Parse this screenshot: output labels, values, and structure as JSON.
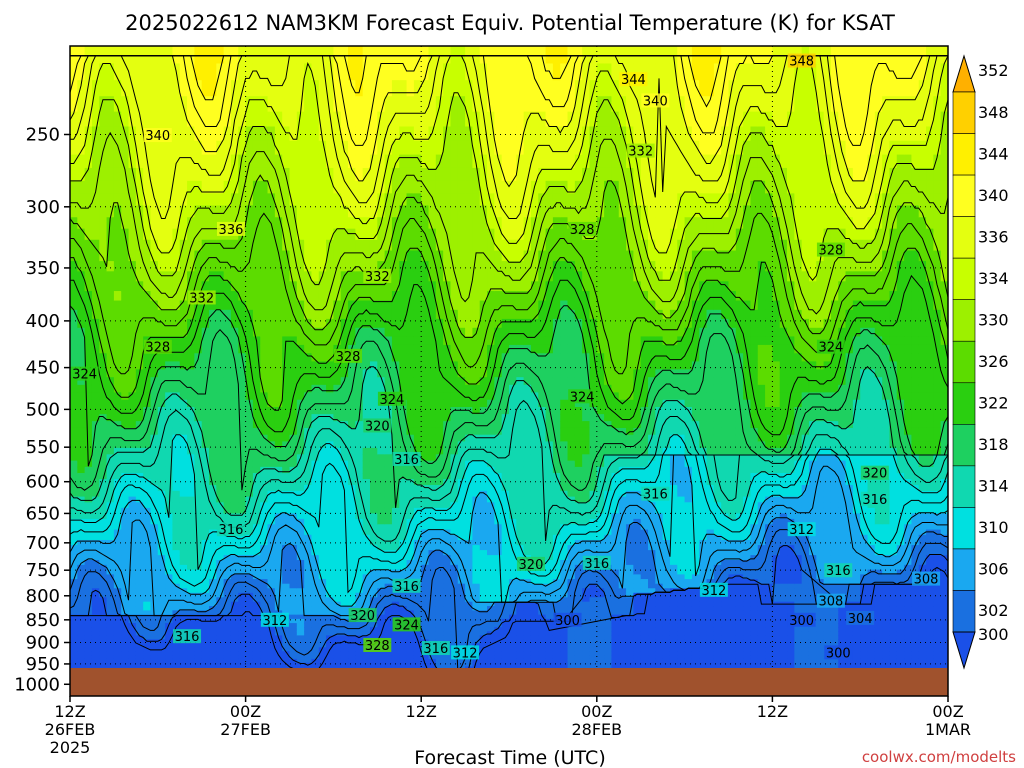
{
  "title": "2025022612 NAM3KM Forecast Equiv. Potential Temperature (K) for KSAT",
  "credit": "coolwx.com/modelts",
  "chart_data": {
    "type": "heatmap",
    "title": "2025022612 NAM3KM Forecast Equiv. Potential Temperature (K) for KSAT",
    "xlabel": "Forecast Time (UTC)",
    "ylabel": "",
    "x_range_hours": [
      0,
      60
    ],
    "y_range_hpa": [
      200,
      1030
    ],
    "y_scale": "log-pressure (inverted)",
    "x_ticks": [
      {
        "hour": 0,
        "line1": "12Z",
        "line2": "26FEB",
        "line3": "2025"
      },
      {
        "hour": 12,
        "line1": "00Z",
        "line2": "27FEB",
        "line3": ""
      },
      {
        "hour": 24,
        "line1": "12Z",
        "line2": "",
        "line3": ""
      },
      {
        "hour": 36,
        "line1": "00Z",
        "line2": "28FEB",
        "line3": ""
      },
      {
        "hour": 48,
        "line1": "12Z",
        "line2": "",
        "line3": ""
      },
      {
        "hour": 60,
        "line1": "00Z",
        "line2": "1MAR",
        "line3": ""
      }
    ],
    "y_ticks": [
      250,
      300,
      350,
      400,
      450,
      500,
      550,
      600,
      650,
      700,
      750,
      800,
      850,
      900,
      950,
      1000
    ],
    "grid": true,
    "colorbar": {
      "values": [
        352,
        348,
        344,
        340,
        336,
        334,
        330,
        326,
        322,
        318,
        314,
        310,
        306,
        302,
        300
      ],
      "colors": [
        "#ffb000",
        "#ffd000",
        "#fff000",
        "#ffff20",
        "#e4ff10",
        "#c8ff00",
        "#9df000",
        "#5cdc00",
        "#2acf10",
        "#1ed060",
        "#10d8b0",
        "#00e0e0",
        "#1aa8f0",
        "#1a70e0",
        "#1a50e8"
      ]
    },
    "surface_color": "#a0522d",
    "contour_labels": [
      {
        "value": "348",
        "hour": 50,
        "p": 208
      },
      {
        "value": "344",
        "hour": 38.5,
        "p": 218
      },
      {
        "value": "340",
        "hour": 40,
        "p": 230
      },
      {
        "value": "340",
        "hour": 6,
        "p": 251
      },
      {
        "value": "332",
        "hour": 39,
        "p": 261
      },
      {
        "value": "336",
        "hour": 11,
        "p": 318
      },
      {
        "value": "328",
        "hour": 35,
        "p": 318
      },
      {
        "value": "328",
        "hour": 52,
        "p": 335
      },
      {
        "value": "332",
        "hour": 21,
        "p": 358
      },
      {
        "value": "332",
        "hour": 9,
        "p": 378
      },
      {
        "value": "328",
        "hour": 6,
        "p": 428
      },
      {
        "value": "328",
        "hour": 19,
        "p": 438
      },
      {
        "value": "324",
        "hour": 52,
        "p": 428
      },
      {
        "value": "324",
        "hour": 1,
        "p": 458
      },
      {
        "value": "324",
        "hour": 22,
        "p": 488
      },
      {
        "value": "324",
        "hour": 35,
        "p": 485
      },
      {
        "value": "320",
        "hour": 21,
        "p": 522
      },
      {
        "value": "316",
        "hour": 23,
        "p": 568
      },
      {
        "value": "320",
        "hour": 55,
        "p": 588
      },
      {
        "value": "316",
        "hour": 40,
        "p": 620
      },
      {
        "value": "316",
        "hour": 55,
        "p": 628
      },
      {
        "value": "316",
        "hour": 11,
        "p": 678
      },
      {
        "value": "312",
        "hour": 50,
        "p": 678
      },
      {
        "value": "320",
        "hour": 31.5,
        "p": 740
      },
      {
        "value": "316",
        "hour": 36,
        "p": 738
      },
      {
        "value": "316",
        "hour": 52.5,
        "p": 752
      },
      {
        "value": "308",
        "hour": 58.5,
        "p": 768
      },
      {
        "value": "316",
        "hour": 23,
        "p": 782
      },
      {
        "value": "312",
        "hour": 44,
        "p": 790
      },
      {
        "value": "308",
        "hour": 52,
        "p": 812
      },
      {
        "value": "312",
        "hour": 14,
        "p": 852
      },
      {
        "value": "320",
        "hour": 20,
        "p": 842
      },
      {
        "value": "324",
        "hour": 23,
        "p": 862
      },
      {
        "value": "300",
        "hour": 34,
        "p": 852
      },
      {
        "value": "300",
        "hour": 50,
        "p": 852
      },
      {
        "value": "304",
        "hour": 54,
        "p": 848
      },
      {
        "value": "316",
        "hour": 8,
        "p": 888
      },
      {
        "value": "328",
        "hour": 21,
        "p": 908
      },
      {
        "value": "316",
        "hour": 25,
        "p": 915
      },
      {
        "value": "312",
        "hour": 27,
        "p": 925
      },
      {
        "value": "300",
        "hour": 52.5,
        "p": 925
      }
    ]
  }
}
